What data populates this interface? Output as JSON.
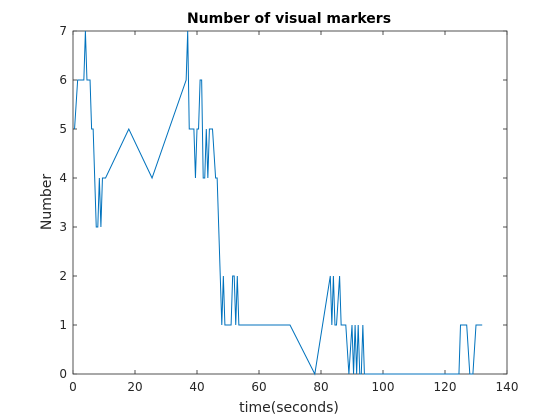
{
  "chart_data": {
    "type": "line",
    "title": "Number of visual markers",
    "xlabel": "time(seconds)",
    "ylabel": "Number",
    "xlim": [
      0,
      140
    ],
    "ylim": [
      0,
      7
    ],
    "xticks": [
      0,
      20,
      40,
      60,
      80,
      100,
      120,
      140
    ],
    "yticks": [
      0,
      1,
      2,
      3,
      4,
      5,
      6,
      7
    ],
    "grid": false,
    "colors": {
      "line": "#0072bd",
      "axis": "#262626",
      "background": "#ffffff"
    },
    "series": [
      {
        "x": [
          0.5,
          1.5,
          2.5,
          3.5,
          4.0,
          4.5,
          5.5,
          6.0,
          6.5,
          7.5,
          8.0,
          8.5,
          9.0,
          9.5,
          10.0,
          10.5,
          18.0,
          25.5,
          36.5,
          37.0,
          37.5,
          38.5,
          39.0,
          39.5,
          40.0,
          40.5,
          41.0,
          41.5,
          42.0,
          42.5,
          43.0,
          43.5,
          44.0,
          44.5,
          45.0,
          46.0,
          46.5,
          47.0,
          48.0,
          48.5,
          49.0,
          49.5,
          50.0,
          51.0,
          51.5,
          52.0,
          52.5,
          53.0,
          53.5,
          54.0,
          70.0,
          78.0,
          83.0,
          83.5,
          84.0,
          84.5,
          85.0,
          86.0,
          86.5,
          87.0,
          88.0,
          89.0,
          90.0,
          90.5,
          91.0,
          91.5,
          92.0,
          92.5,
          93.0,
          93.5,
          94.0,
          94.5,
          95.0,
          124.5,
          125.0,
          125.5,
          127.0,
          128.0,
          129.0,
          130.0,
          131.0,
          132.0
        ],
        "y": [
          5,
          6,
          6,
          6,
          7,
          6,
          6,
          5,
          5,
          3,
          3,
          4,
          3,
          4,
          4,
          4,
          5,
          4,
          6,
          7,
          5,
          5,
          5,
          4,
          5,
          5,
          6,
          6,
          4,
          4,
          5,
          4,
          5,
          5,
          5,
          4,
          4,
          3,
          1,
          2,
          1,
          1,
          1,
          1,
          2,
          2,
          1,
          2,
          1,
          1,
          1,
          0,
          2,
          1,
          2,
          1,
          1,
          2,
          1,
          1,
          1,
          0,
          1,
          0,
          1,
          0,
          1,
          0,
          0,
          1,
          0,
          0,
          0,
          0,
          1,
          1,
          1,
          0,
          0,
          1,
          1,
          1
        ]
      }
    ]
  }
}
